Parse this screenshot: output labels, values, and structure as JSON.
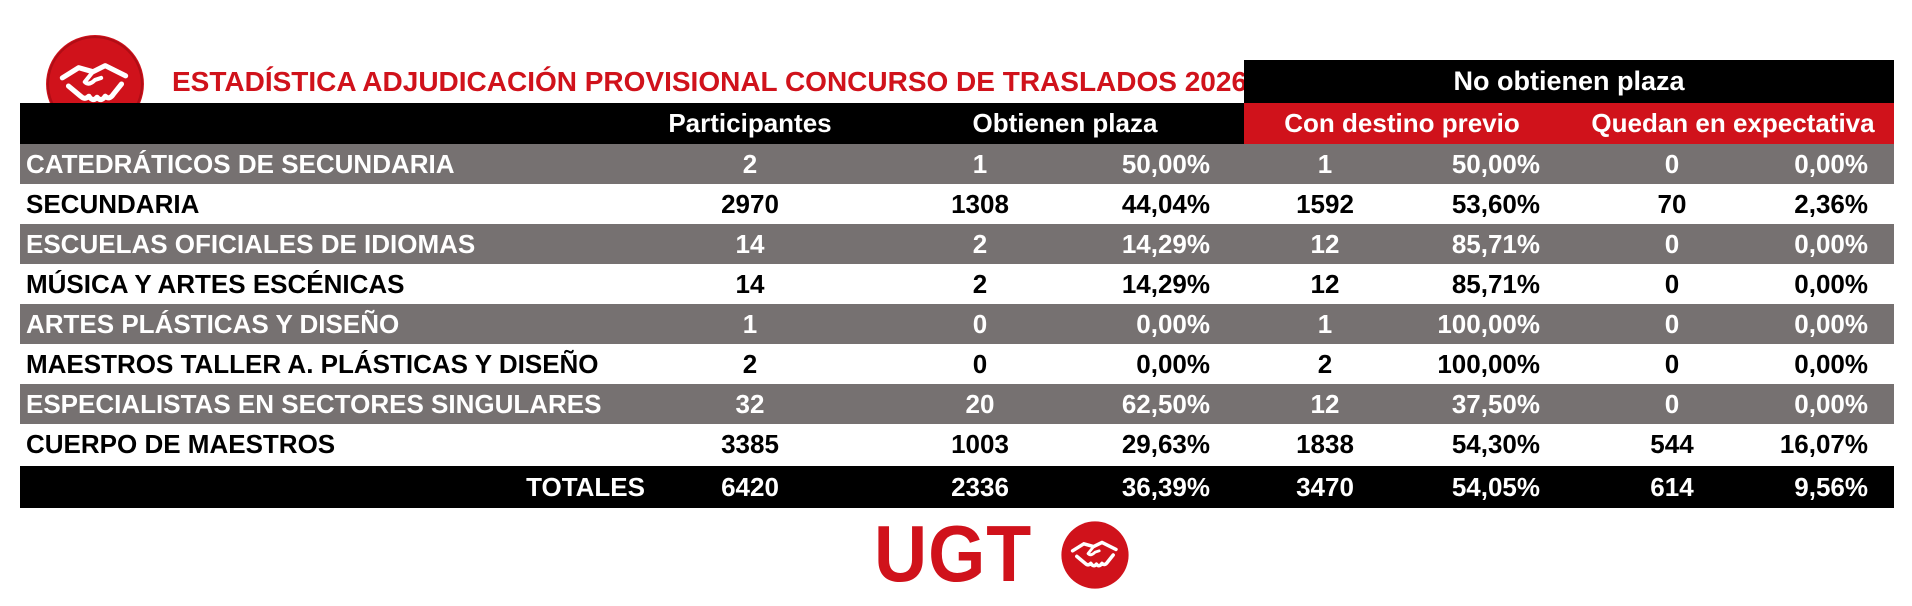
{
  "title": "ESTADÍSTICA ADJUDICACIÓN PROVISIONAL CONCURSO DE TRASLADOS 2026",
  "header": {
    "no_obtienen": "No obtienen plaza",
    "participantes": "Participantes",
    "obtienen": "Obtienen plaza",
    "con_destino": "Con destino previo",
    "quedan": "Quedan en expectativa"
  },
  "rows": [
    {
      "name": "CATEDRÁTICOS DE SECUNDARIA",
      "participantes": "2",
      "obtienen": "1",
      "obtienen_pct": "50,00%",
      "destino": "1",
      "destino_pct": "50,00%",
      "expectativa": "0",
      "expectativa_pct": "0,00%"
    },
    {
      "name": "SECUNDARIA",
      "participantes": "2970",
      "obtienen": "1308",
      "obtienen_pct": "44,04%",
      "destino": "1592",
      "destino_pct": "53,60%",
      "expectativa": "70",
      "expectativa_pct": "2,36%"
    },
    {
      "name": "ESCUELAS OFICIALES DE IDIOMAS",
      "participantes": "14",
      "obtienen": "2",
      "obtienen_pct": "14,29%",
      "destino": "12",
      "destino_pct": "85,71%",
      "expectativa": "0",
      "expectativa_pct": "0,00%"
    },
    {
      "name": "MÚSICA Y ARTES ESCÉNICAS",
      "participantes": "14",
      "obtienen": "2",
      "obtienen_pct": "14,29%",
      "destino": "12",
      "destino_pct": "85,71%",
      "expectativa": "0",
      "expectativa_pct": "0,00%"
    },
    {
      "name": "ARTES PLÁSTICAS Y DISEÑO",
      "participantes": "1",
      "obtienen": "0",
      "obtienen_pct": "0,00%",
      "destino": "1",
      "destino_pct": "100,00%",
      "expectativa": "0",
      "expectativa_pct": "0,00%"
    },
    {
      "name": "MAESTROS TALLER A. PLÁSTICAS Y DISEÑO",
      "participantes": "2",
      "obtienen": "0",
      "obtienen_pct": "0,00%",
      "destino": "2",
      "destino_pct": "100,00%",
      "expectativa": "0",
      "expectativa_pct": "0,00%"
    },
    {
      "name": "ESPECIALISTAS EN SECTORES SINGULARES",
      "participantes": "32",
      "obtienen": "20",
      "obtienen_pct": "62,50%",
      "destino": "12",
      "destino_pct": "37,50%",
      "expectativa": "0",
      "expectativa_pct": "0,00%"
    },
    {
      "name": "CUERPO DE MAESTROS",
      "participantes": "3385",
      "obtienen": "1003",
      "obtienen_pct": "29,63%",
      "destino": "1838",
      "destino_pct": "54,30%",
      "expectativa": "544",
      "expectativa_pct": "16,07%"
    }
  ],
  "totals": {
    "name": "TOTALES",
    "participantes": "6420",
    "obtienen": "2336",
    "obtienen_pct": "36,39%",
    "destino": "3470",
    "destino_pct": "54,05%",
    "expectativa": "614",
    "expectativa_pct": "9,56%"
  },
  "footer_logo_text": "UGT",
  "colors": {
    "brand_red": "#d0121b",
    "row_gray": "#767171",
    "header_black": "#000000"
  },
  "icons": {
    "brand": "handshake-logo-icon"
  }
}
